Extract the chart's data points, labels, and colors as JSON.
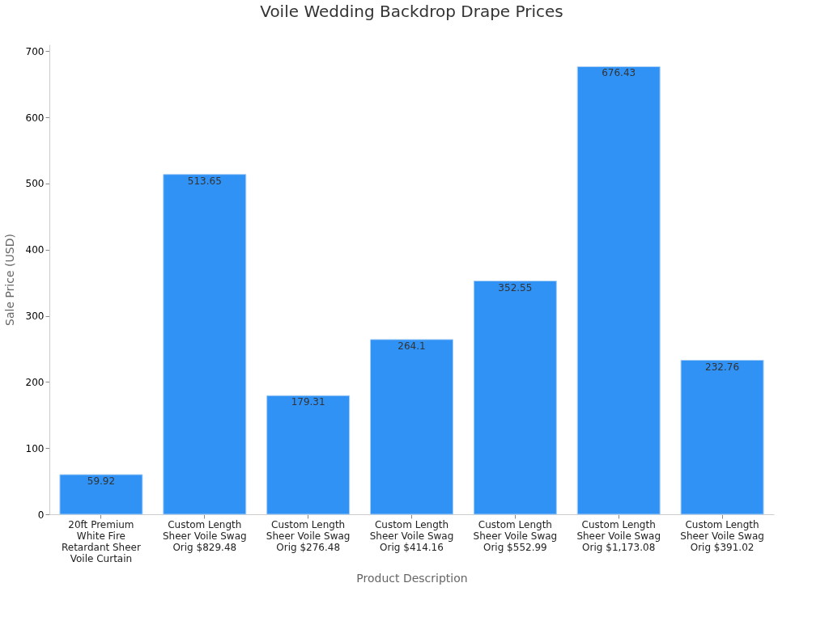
{
  "chart_data": {
    "type": "bar",
    "title": "Voile Wedding Backdrop Drape Prices",
    "xlabel": "Product Description",
    "ylabel": "Sale Price (USD)",
    "categories": [
      "20ft Premium White Fire Retardant Sheer Voile Curtain",
      "Custom Length Sheer Voile Swag Orig $829.48",
      "Custom Length Sheer Voile Swag Orig $276.48",
      "Custom Length Sheer Voile Swag Orig $414.16",
      "Custom Length Sheer Voile Swag Orig $552.99",
      "Custom Length Sheer Voile Swag Orig $1,173.08",
      "Custom Length Sheer Voile Swag Orig $391.02"
    ],
    "values": [
      59.92,
      513.65,
      179.31,
      264.1,
      352.55,
      676.43,
      232.76
    ],
    "color": "#3092f5",
    "ylim": [
      0,
      710
    ],
    "yticks": [
      0,
      100,
      200,
      300,
      400,
      500,
      600,
      700
    ],
    "grid": false,
    "data_labels": true
  }
}
